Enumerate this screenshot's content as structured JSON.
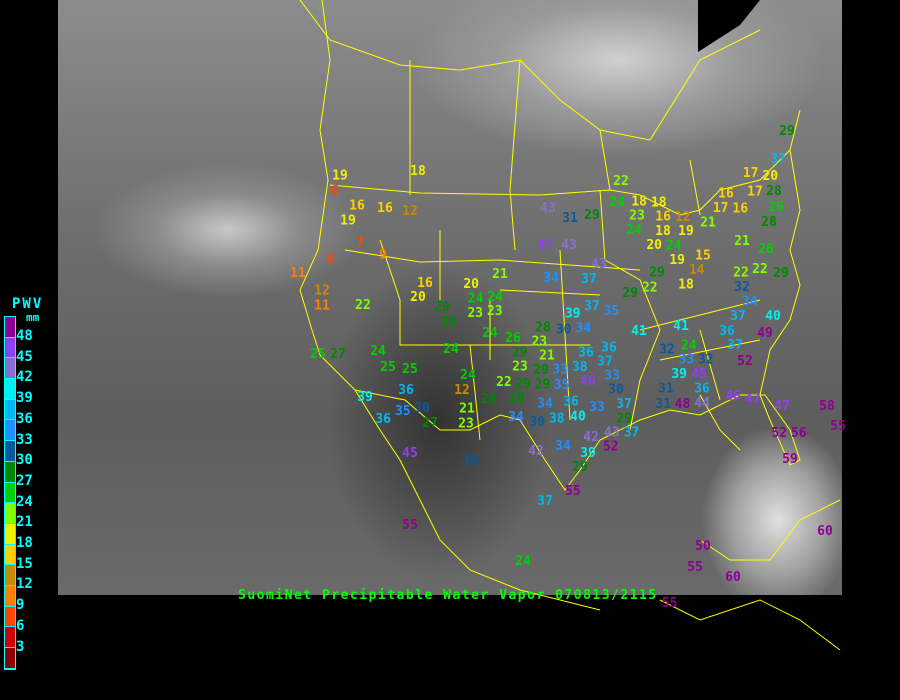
{
  "title": "SuomiNet Precipitable Water Vapor 070813/2115",
  "legend": {
    "title": "PWV",
    "unit": "mm",
    "labels": [
      "48",
      "45",
      "42",
      "39",
      "36",
      "33",
      "30",
      "27",
      "24",
      "21",
      "18",
      "15",
      "12",
      "9",
      "6",
      "3"
    ],
    "colors_top_to_bottom": [
      "#900090",
      "#9040f0",
      "#8870d0",
      "#00f0f0",
      "#00b8f0",
      "#1e90ff",
      "#0a5a9a",
      "#008800",
      "#00d000",
      "#80ff00",
      "#f0f000",
      "#ffd000",
      "#c88a00",
      "#ff8000",
      "#ff4500",
      "#d00000",
      "#8b0000"
    ]
  },
  "map": {
    "background": "grayscale infrared satellite",
    "border_color": "#ffff00"
  },
  "stations": [
    19,
    6,
    16,
    16,
    12,
    18,
    19,
    7,
    9,
    6,
    11,
    12,
    11,
    22,
    25,
    27,
    24,
    25,
    25,
    36,
    39,
    36,
    35,
    30,
    27,
    23,
    21,
    12,
    24,
    28,
    16,
    20,
    20,
    24,
    24,
    23,
    23,
    29,
    28,
    24,
    24,
    26,
    21,
    23,
    22,
    29,
    28,
    34,
    30,
    34,
    38,
    40,
    43,
    31,
    29,
    22,
    24,
    23,
    24,
    47,
    43,
    43,
    37,
    34,
    37,
    35,
    39,
    30,
    34,
    28,
    23,
    29,
    21,
    29,
    33,
    38,
    36,
    37,
    46,
    33,
    29,
    35,
    36,
    33,
    30,
    37,
    29,
    37,
    43,
    42,
    52,
    39,
    34,
    42,
    29,
    36,
    41,
    41,
    32,
    24,
    33,
    39,
    32,
    45,
    36,
    31,
    31,
    48,
    44,
    46,
    47,
    47,
    58,
    52,
    56,
    59,
    49,
    52,
    37,
    36,
    37,
    40,
    34,
    32,
    22,
    29,
    22,
    21,
    26,
    28,
    26,
    17,
    28,
    17,
    20,
    37,
    29,
    16,
    16,
    17,
    21,
    18,
    18,
    16,
    12,
    18,
    19,
    24,
    20,
    19,
    15,
    14,
    18,
    29,
    22,
    29,
    37,
    55,
    24,
    30,
    45,
    55,
    50,
    55,
    60,
    55,
    60,
    55
  ]
}
